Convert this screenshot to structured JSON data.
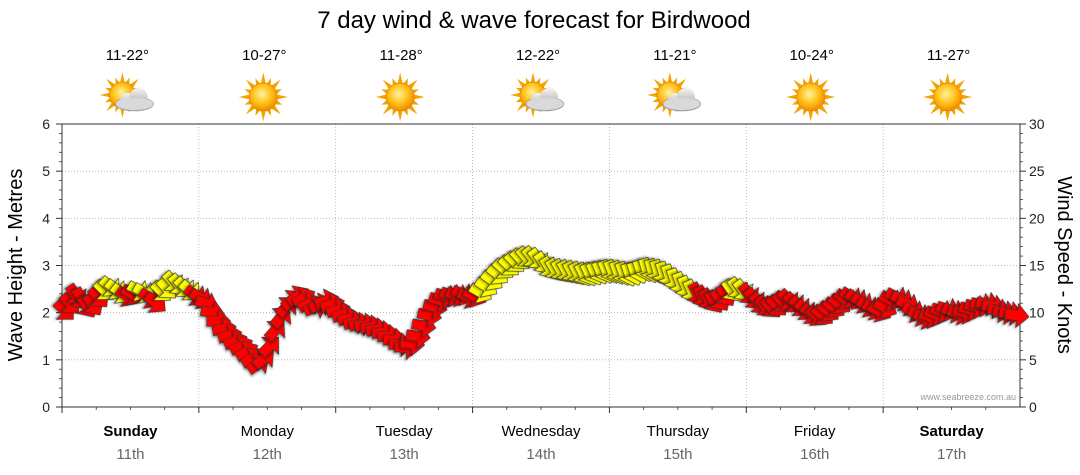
{
  "chart_data": {
    "type": "line",
    "title": "7 day wind & wave forecast for Birdwood",
    "ylabel_left": "Wave Height - Metres",
    "ylabel_right": "Wind Speed - Knots",
    "ylim_left": [
      0,
      6
    ],
    "ylim_right": [
      0,
      30
    ],
    "yticks_left": [
      "0",
      "1",
      "2",
      "3",
      "4",
      "5",
      "6"
    ],
    "yticks_right": [
      "0",
      "5",
      "10",
      "15",
      "20",
      "25",
      "30"
    ],
    "grid": true,
    "credit": "www.seabreeze.com.au",
    "colors": {
      "strong": "#ff0000",
      "moderate": "#ffff00",
      "outline": "#333333"
    },
    "days": [
      {
        "name": "Sunday",
        "date": "11th",
        "temp": "11-22°",
        "weather": "partly-cloudy-icon",
        "bold": true
      },
      {
        "name": "Monday",
        "date": "12th",
        "temp": "10-27°",
        "weather": "sun-icon",
        "bold": false
      },
      {
        "name": "Tuesday",
        "date": "13th",
        "temp": "11-28°",
        "weather": "sun-icon",
        "bold": false
      },
      {
        "name": "Wednesday",
        "date": "14th",
        "temp": "12-22°",
        "weather": "partly-cloudy-icon",
        "bold": false
      },
      {
        "name": "Thursday",
        "date": "15th",
        "temp": "11-21°",
        "weather": "partly-cloudy-icon",
        "bold": false
      },
      {
        "name": "Friday",
        "date": "16th",
        "temp": "10-24°",
        "weather": "sun-icon",
        "bold": false
      },
      {
        "name": "Saturday",
        "date": "17th",
        "temp": "11-27°",
        "weather": "sun-icon",
        "bold": true
      }
    ],
    "wind_speed_knots": [
      10.2,
      10.9,
      11.8,
      11.4,
      10.6,
      10.8,
      11.6,
      12.3,
      12.7,
      12.4,
      12.0,
      11.7,
      11.9,
      12.3,
      12.1,
      11.5,
      11.0,
      12.2,
      12.5,
      13.2,
      12.9,
      12.6,
      12.3,
      11.8,
      11.5,
      10.9,
      10.0,
      9.1,
      8.3,
      7.6,
      7.0,
      6.5,
      5.9,
      5.2,
      4.6,
      5.2,
      6.5,
      8.2,
      9.6,
      10.7,
      11.4,
      11.8,
      11.6,
      11.0,
      10.6,
      10.9,
      11.3,
      10.9,
      10.3,
      9.8,
      9.4,
      9.0,
      8.8,
      8.7,
      8.5,
      8.2,
      7.9,
      7.5,
      7.1,
      6.6,
      6.3,
      6.7,
      7.5,
      8.6,
      9.7,
      10.6,
      11.3,
      11.7,
      11.8,
      11.8,
      11.9,
      11.6,
      11.7,
      12.1,
      12.7,
      13.4,
      14.0,
      14.6,
      14.9,
      15.3,
      15.6,
      15.8,
      15.8,
      15.6,
      15.2,
      14.7,
      14.5,
      14.4,
      14.3,
      14.2,
      14.1,
      14.0,
      14.0,
      14.1,
      14.2,
      14.3,
      14.3,
      14.2,
      14.1,
      14.0,
      14.1,
      14.3,
      14.5,
      14.4,
      14.3,
      14.1,
      13.8,
      13.4,
      13.0,
      12.6,
      12.2,
      11.9,
      11.6,
      11.3,
      11.1,
      11.3,
      11.8,
      12.3,
      12.5,
      12.3,
      11.9,
      11.4,
      10.9,
      10.6,
      10.5,
      10.7,
      11.1,
      11.3,
      11.0,
      10.6,
      10.2,
      9.8,
      9.6,
      9.7,
      10.1,
      10.5,
      10.9,
      11.4,
      11.6,
      11.4,
      11.0,
      10.6,
      10.3,
      10.1,
      10.5,
      11.3,
      11.6,
      11.3,
      10.8,
      10.1,
      9.7,
      9.4,
      9.5,
      9.8,
      10.1,
      10.3,
      10.1,
      9.9,
      10.0,
      10.3,
      10.6,
      10.8,
      10.9,
      10.6,
      10.2,
      10.0,
      9.9,
      9.7
    ],
    "wind_direction_deg": [
      315,
      320,
      325,
      330,
      328,
      326,
      320,
      315,
      312,
      310,
      308,
      305,
      302,
      300,
      300,
      305,
      310,
      315,
      318,
      320,
      322,
      318,
      312,
      305,
      300,
      290,
      280,
      270,
      260,
      255,
      250,
      245,
      240,
      240,
      235,
      230,
      225,
      222,
      220,
      225,
      230,
      236,
      240,
      245,
      248,
      250,
      252,
      254,
      255,
      256,
      257,
      258,
      259,
      260,
      262,
      264,
      266,
      268,
      270,
      272,
      274,
      276,
      278,
      280,
      282,
      284,
      286,
      288,
      290,
      292,
      294,
      295,
      297,
      300,
      303,
      306,
      309,
      312,
      314,
      316,
      318,
      320,
      322,
      324,
      326,
      328,
      329,
      330,
      331,
      332,
      333,
      334,
      335,
      336,
      337,
      338,
      339,
      340,
      340,
      341,
      342,
      343,
      344,
      345,
      344,
      343,
      342,
      341,
      340,
      338,
      336,
      334,
      332,
      330,
      328,
      327,
      326,
      325,
      325,
      324,
      323,
      322,
      321,
      320,
      319,
      318,
      317,
      316,
      315,
      314,
      313,
      312,
      311,
      310,
      309,
      308,
      307,
      306,
      305,
      304,
      303,
      302,
      301,
      300,
      300,
      299,
      298,
      297,
      296,
      295,
      294,
      293,
      292,
      291,
      290,
      289,
      288,
      287,
      286,
      285,
      284,
      283,
      282,
      281,
      280,
      279,
      278,
      277
    ]
  }
}
